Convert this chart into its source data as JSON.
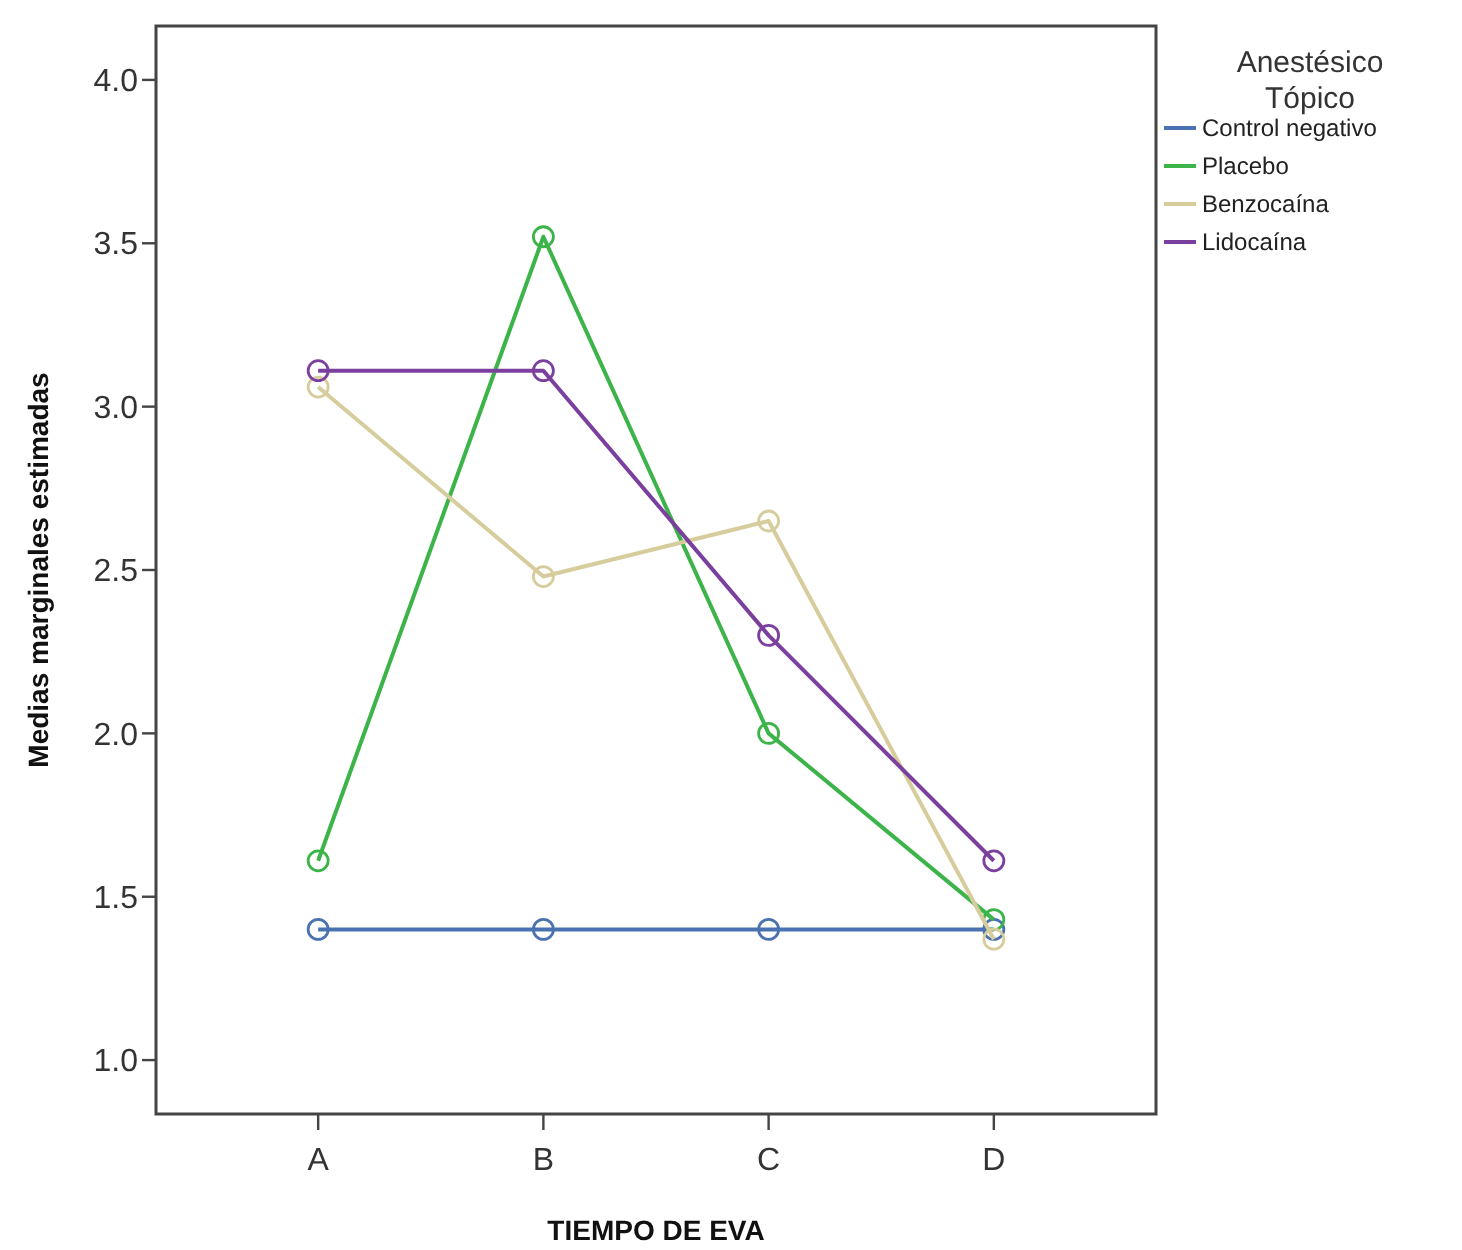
{
  "chart_data": {
    "type": "line",
    "xlabel": "TIEMPO DE EVA",
    "ylabel": "Medias marginales estimadas",
    "legend_title": "Anestésico Tópico",
    "categories": [
      "A",
      "B",
      "C",
      "D"
    ],
    "series": [
      {
        "name": "Control negativo",
        "color": "#4a72b0",
        "values": [
          1.4,
          1.4,
          1.4,
          1.4
        ]
      },
      {
        "name": "Placebo",
        "color": "#3cb44a",
        "values": [
          1.61,
          3.52,
          2.0,
          1.43
        ]
      },
      {
        "name": "Benzocaína",
        "color": "#d6cc9c",
        "values": [
          3.06,
          2.48,
          2.65,
          1.37
        ]
      },
      {
        "name": "Lidocaína",
        "color": "#7b3f9e",
        "values": [
          3.11,
          3.11,
          2.3,
          1.61
        ]
      }
    ],
    "ylim": [
      0.835,
      4.165
    ],
    "yticks": [
      {
        "value": 1,
        "label": "1.0"
      },
      {
        "value": 1.5,
        "label": "1.5"
      },
      {
        "value": 2,
        "label": "2.0"
      },
      {
        "value": 2.5,
        "label": "2.5"
      },
      {
        "value": 3,
        "label": "3.0"
      },
      {
        "value": 3.5,
        "label": "3.5"
      },
      {
        "value": 4,
        "label": "4.0"
      }
    ],
    "grid": false,
    "legend": "right",
    "marker": "circle",
    "line_style": "solid"
  }
}
